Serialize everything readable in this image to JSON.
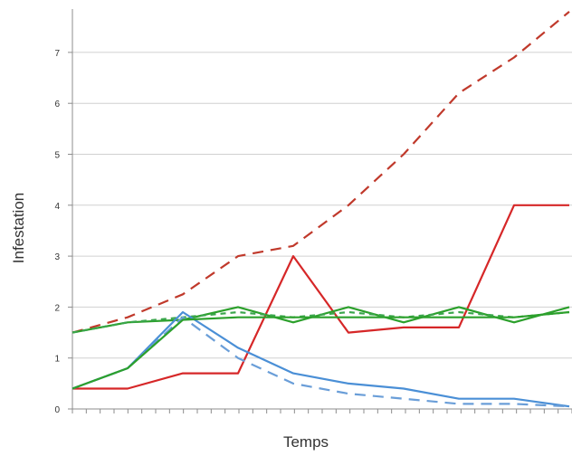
{
  "chart_data": {
    "type": "line",
    "title": "",
    "xlabel": "Temps",
    "ylabel": "Infestation",
    "ylim": [
      0,
      7.8
    ],
    "yticks": [
      0,
      1,
      2,
      3,
      4,
      5,
      6,
      7
    ],
    "x": [
      0,
      1,
      2,
      3,
      4,
      5,
      6,
      7,
      8,
      9
    ],
    "grid": true,
    "legend": "none",
    "series": [
      {
        "color": "#c0392b",
        "dash": "12,8",
        "values": [
          1.5,
          1.8,
          2.25,
          3.0,
          3.2,
          4.0,
          5.0,
          6.2,
          6.9,
          7.8
        ]
      },
      {
        "color": "#d62728",
        "dash": "",
        "values": [
          0.4,
          0.4,
          0.7,
          0.7,
          3.0,
          1.5,
          1.6,
          1.6,
          4.0,
          4.0
        ]
      },
      {
        "color": "#2ca02c",
        "dash": "",
        "values": [
          1.5,
          1.7,
          1.75,
          2.0,
          1.7,
          2.0,
          1.7,
          2.0,
          1.7,
          2.0
        ]
      },
      {
        "color": "#3aa64c",
        "dash": "6,5",
        "values": [
          1.5,
          1.7,
          1.8,
          1.9,
          1.8,
          1.9,
          1.8,
          1.9,
          1.8,
          1.9
        ]
      },
      {
        "color": "#4a8fd6",
        "dash": "",
        "values": [
          0.4,
          0.8,
          1.9,
          1.2,
          0.7,
          0.5,
          0.4,
          0.2,
          0.2,
          0.05
        ]
      },
      {
        "color": "#6a9ed8",
        "dash": "12,8",
        "values": [
          0.4,
          0.8,
          1.8,
          1.0,
          0.5,
          0.3,
          0.2,
          0.1,
          0.1,
          0.05
        ]
      },
      {
        "color": "#2ca02c",
        "dash": "",
        "values": [
          0.4,
          0.8,
          1.75,
          1.8,
          1.8,
          1.8,
          1.8,
          1.8,
          1.8,
          1.9
        ]
      }
    ]
  }
}
